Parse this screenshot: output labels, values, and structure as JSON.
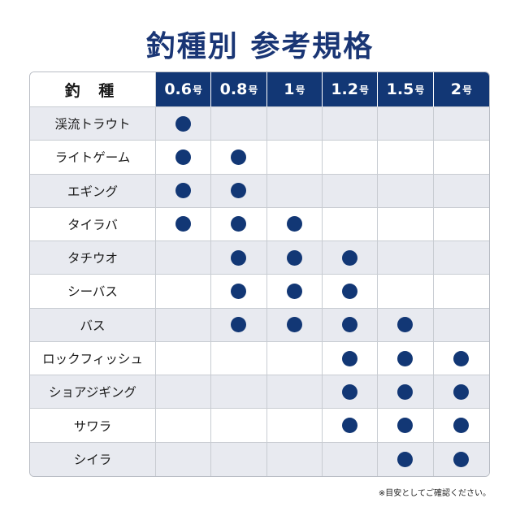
{
  "title": "釣種別 参考規格",
  "table": {
    "header_species": "釣 種",
    "sizes": [
      {
        "num": "0.6",
        "unit": "号"
      },
      {
        "num": "0.8",
        "unit": "号"
      },
      {
        "num": "1",
        "unit": "号"
      },
      {
        "num": "1.2",
        "unit": "号"
      },
      {
        "num": "1.5",
        "unit": "号"
      },
      {
        "num": "2",
        "unit": "号"
      }
    ],
    "rows": [
      {
        "species": "渓流トラウト",
        "marks": [
          true,
          false,
          false,
          false,
          false,
          false
        ]
      },
      {
        "species": "ライトゲーム",
        "marks": [
          true,
          true,
          false,
          false,
          false,
          false
        ]
      },
      {
        "species": "エギング",
        "marks": [
          true,
          true,
          false,
          false,
          false,
          false
        ]
      },
      {
        "species": "タイラバ",
        "marks": [
          true,
          true,
          true,
          false,
          false,
          false
        ]
      },
      {
        "species": "タチウオ",
        "marks": [
          false,
          true,
          true,
          true,
          false,
          false
        ]
      },
      {
        "species": "シーバス",
        "marks": [
          false,
          true,
          true,
          true,
          false,
          false
        ]
      },
      {
        "species": "バス",
        "marks": [
          false,
          true,
          true,
          true,
          true,
          false
        ]
      },
      {
        "species": "ロックフィッシュ",
        "marks": [
          false,
          false,
          false,
          true,
          true,
          true
        ]
      },
      {
        "species": "ショアジギング",
        "marks": [
          false,
          false,
          false,
          true,
          true,
          true
        ]
      },
      {
        "species": "サワラ",
        "marks": [
          false,
          false,
          false,
          true,
          true,
          true
        ]
      },
      {
        "species": "シイラ",
        "marks": [
          false,
          false,
          false,
          false,
          true,
          true
        ]
      }
    ]
  },
  "note": "※目安としてご確認ください。",
  "colors": {
    "navy": "#123775",
    "row_gray": "#e8eaf0",
    "title": "#1a3675"
  }
}
